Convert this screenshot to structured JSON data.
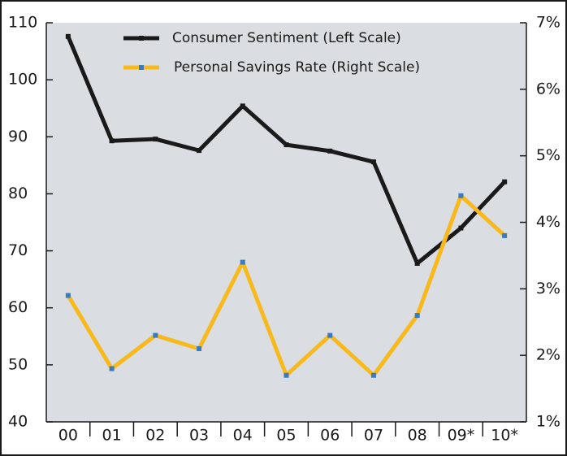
{
  "chart_data": {
    "type": "line",
    "categories": [
      "00",
      "01",
      "02",
      "03",
      "04",
      "05",
      "06",
      "07",
      "08",
      "09*",
      "10*"
    ],
    "series": [
      {
        "name": "Consumer Sentiment (Left Scale)",
        "color": "#1a1a1a",
        "axis": "y",
        "values": [
          107.6,
          89.3,
          89.6,
          87.6,
          95.4,
          88.6,
          87.5,
          85.6,
          67.8,
          74.0,
          82.1
        ]
      },
      {
        "name": "Personal Savings Rate (Right Scale)",
        "color": "#f7b91c",
        "marker_color": "#3a7bbf",
        "axis": "y2",
        "values": [
          2.9,
          1.8,
          2.3,
          2.1,
          3.4,
          1.7,
          2.3,
          1.7,
          2.6,
          4.4,
          3.8
        ]
      }
    ],
    "ylim": [
      40,
      110
    ],
    "yticks": [
      40,
      50,
      60,
      70,
      80,
      90,
      100,
      110
    ],
    "y2lim": [
      1,
      7
    ],
    "y2ticks": [
      {
        "value": 1,
        "label": "1%"
      },
      {
        "value": 2,
        "label": "2%"
      },
      {
        "value": 3,
        "label": "3%"
      },
      {
        "value": 4,
        "label": "4%"
      },
      {
        "value": 5,
        "label": "5%"
      },
      {
        "value": 6,
        "label": "6%"
      },
      {
        "value": 7,
        "label": "7%"
      }
    ],
    "grid": false,
    "legend": "top"
  }
}
